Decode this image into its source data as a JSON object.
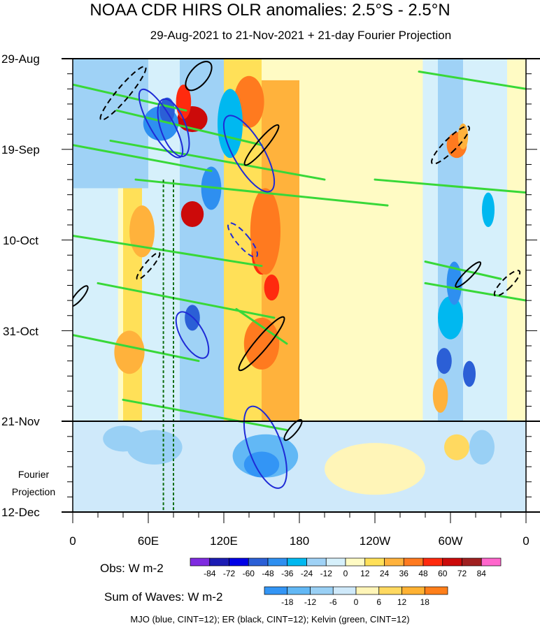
{
  "chart_data": {
    "type": "heatmap",
    "title": "NOAA CDR HIRS OLR anomalies: 2.5°S - 2.5°N",
    "subtitle": "29-Aug-2021 to 21-Nov-2021 + 21-day Fourier Projection",
    "x_ticks": [
      "0",
      "60E",
      "120E",
      "180",
      "120W",
      "60W",
      "0"
    ],
    "y_ticks": [
      "29-Aug",
      "19-Sep",
      "10-Oct",
      "31-Oct",
      "21-Nov",
      "12-Dec"
    ],
    "projection_label_1": "Fourier",
    "projection_label_2": "Projection",
    "obs_label": "Obs: W m-2",
    "obs_levels": [
      "-84",
      "-72",
      "-60",
      "-48",
      "-36",
      "-24",
      "-12",
      "0",
      "12",
      "24",
      "36",
      "48",
      "60",
      "72",
      "84"
    ],
    "obs_colors": [
      "#7f2be0",
      "#1c1cb4",
      "#0000e6",
      "#2b5fd6",
      "#2e8ff0",
      "#00b8f0",
      "#9fd2f6",
      "#d6f0fb",
      "#fffbc4",
      "#ffe058",
      "#ffb23c",
      "#ff7a1f",
      "#ff2a0e",
      "#cc0a0a",
      "#a02020",
      "#ff66cc"
    ],
    "waves_label": "Sum of Waves: W m-2",
    "waves_levels": [
      "-18",
      "-12",
      "-6",
      "0",
      "6",
      "12",
      "18"
    ],
    "waves_colors": [
      "#3395f5",
      "#62b8f5",
      "#99d0f5",
      "#cfe9fa",
      "#fff5b8",
      "#ffd960",
      "#ffb233",
      "#ff7f1a"
    ],
    "footer": "MJO (blue, CINT=12); ER (black, CINT=12); Kelvin (green, CINT=12)",
    "contour_colors": {
      "mjo": "#1f2bd6",
      "er": "#000000",
      "kelvin": "#38d838",
      "projection_line": "#000000",
      "mjo_index_lines": "#0a6b0a"
    },
    "x_range_deg_east": [
      0,
      360
    ],
    "y_range_days_from_29Aug": [
      0,
      105
    ],
    "obs_end_day": 84
  }
}
